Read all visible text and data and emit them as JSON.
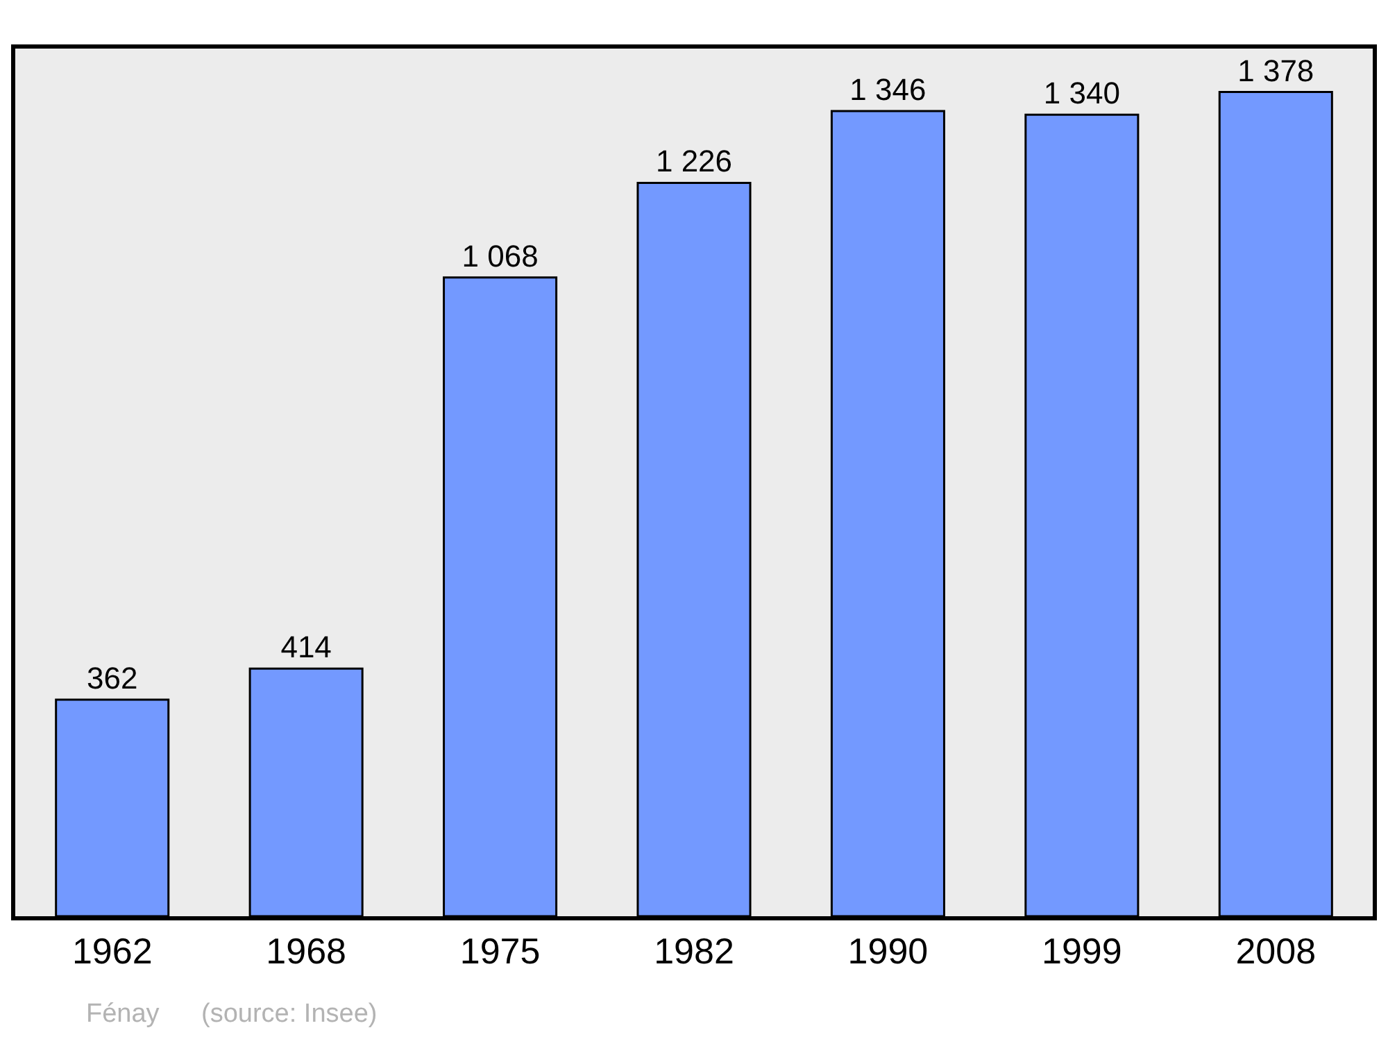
{
  "chart_data": {
    "type": "bar",
    "categories": [
      "1962",
      "1968",
      "1975",
      "1982",
      "1990",
      "1999",
      "2008"
    ],
    "values": [
      362,
      414,
      1068,
      1226,
      1346,
      1340,
      1378
    ],
    "value_labels": [
      "362",
      "414",
      "1 068",
      "1 226",
      "1 346",
      "1 340",
      "1 378"
    ],
    "color": "#7399ff",
    "annotations": [
      "Fénay",
      "(source: Insee)"
    ]
  }
}
